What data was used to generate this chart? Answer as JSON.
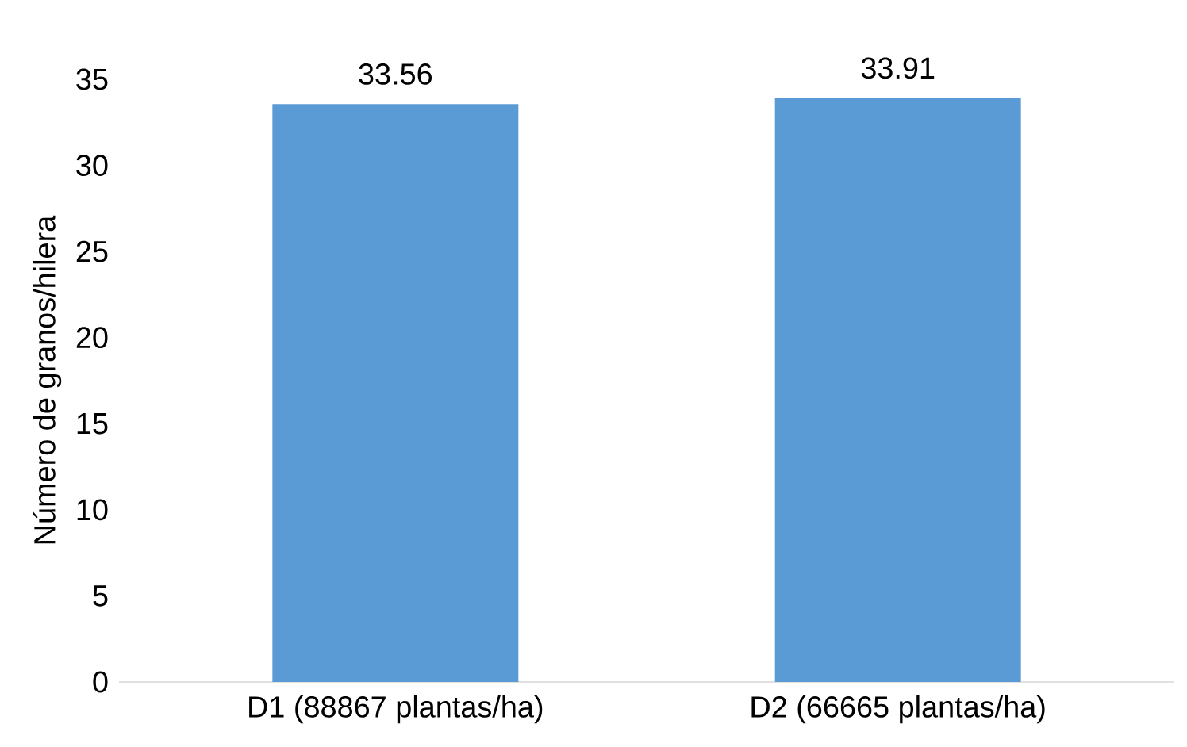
{
  "chart_data": {
    "type": "bar",
    "ylabel": "Número de granos/hilera",
    "categories": [
      "D1 (88867 plantas/ha)",
      "D2 (66665 plantas/ha)"
    ],
    "values": [
      33.56,
      33.91
    ],
    "color": "#5b9bd5",
    "ylim": [
      0,
      35
    ],
    "yticks": [
      0,
      5,
      10,
      15,
      20,
      25,
      30,
      35
    ],
    "data_labels": true
  }
}
